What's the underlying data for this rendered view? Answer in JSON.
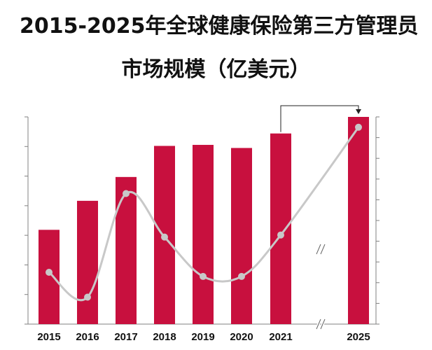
{
  "chart_data": {
    "type": "bar",
    "title_line1": "2015-2025年全球健康保险第三方管理员",
    "title_line2": "市场规模（亿美元）",
    "categories": [
      "2015",
      "2016",
      "2017",
      "2018",
      "2019",
      "2020",
      "2021",
      "2025"
    ],
    "series": [
      {
        "type": "bar",
        "values": [
          455,
          595,
          710,
          860,
          865,
          850,
          920,
          1000
        ]
      },
      {
        "type": "line",
        "values": [
          0.25,
          0.13,
          0.63,
          0.42,
          0.23,
          0.23,
          0.43,
          0.95
        ]
      }
    ],
    "left_axis_range": [
      0,
      1000
    ],
    "left_axis_ticks": 7,
    "right_axis_ticks": 10,
    "axis_break_between": [
      "2021",
      "2025"
    ],
    "has_arrow_2021_to_2025": true,
    "grid": false,
    "legend": "none",
    "colors": {
      "bar": "#c8103e",
      "line": "#c8c8c8",
      "axis": "#808080",
      "arrow": "#222222"
    }
  }
}
